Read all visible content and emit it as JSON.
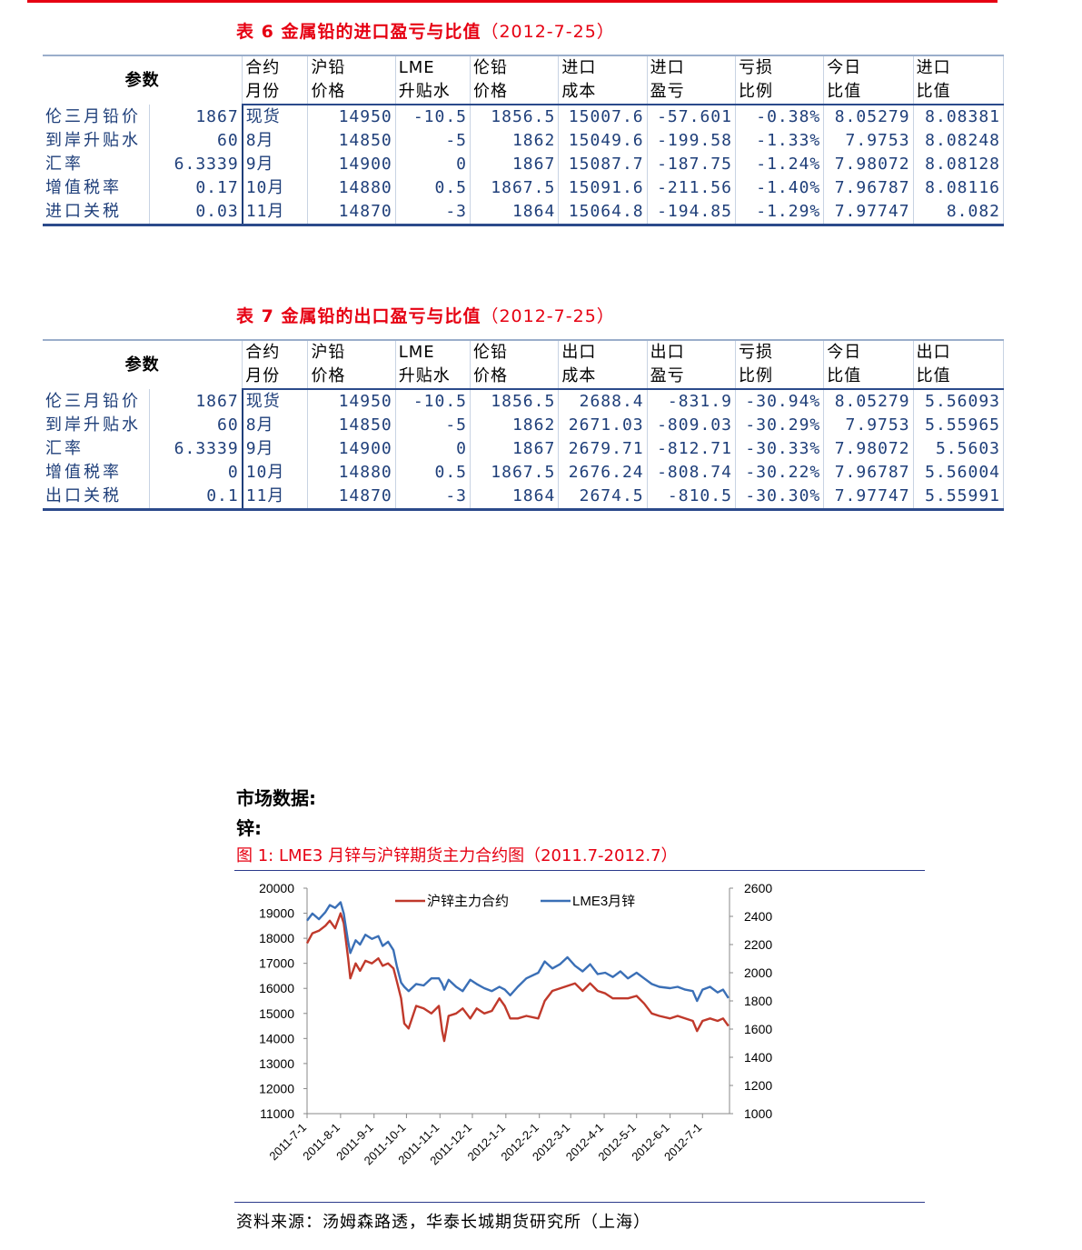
{
  "table6": {
    "title": "表 6 金属铅的进口盈亏与比值",
    "date": "（2012-7-25）",
    "param_header": "参数",
    "headers_top": [
      "合约",
      "沪铅",
      "LME",
      "伦铅",
      "进口",
      "进口",
      "亏损",
      "今日",
      "进口"
    ],
    "headers_bottom": [
      "月份",
      "价格",
      "升贴水",
      "价格",
      "成本",
      "盈亏",
      "比例",
      "比值",
      "比值"
    ],
    "rows": [
      {
        "label": "伦三月铅价",
        "value": "1867",
        "cells": [
          "现货",
          "14950",
          "-10.5",
          "1856.5",
          "15007.6",
          "-57.601",
          "-0.38%",
          "8.05279",
          "8.08381"
        ]
      },
      {
        "label": "到岸升贴水",
        "value": "60",
        "cells": [
          "8月",
          "14850",
          "-5",
          "1862",
          "15049.6",
          "-199.58",
          "-1.33%",
          "7.9753",
          "8.08248"
        ]
      },
      {
        "label": "汇率",
        "value": "6.3339",
        "cells": [
          "9月",
          "14900",
          "0",
          "1867",
          "15087.7",
          "-187.75",
          "-1.24%",
          "7.98072",
          "8.08128"
        ]
      },
      {
        "label": "增值税率",
        "value": "0.17",
        "cells": [
          "10月",
          "14880",
          "0.5",
          "1867.5",
          "15091.6",
          "-211.56",
          "-1.40%",
          "7.96787",
          "8.08116"
        ]
      },
      {
        "label": "进口关税",
        "value": "0.03",
        "cells": [
          "11月",
          "14870",
          "-3",
          "1864",
          "15064.8",
          "-194.85",
          "-1.29%",
          "7.97747",
          "8.082"
        ]
      }
    ]
  },
  "table7": {
    "title": "表 7 金属铅的出口盈亏与比值",
    "date": "（2012-7-25）",
    "param_header": "参数",
    "headers_top": [
      "合约",
      "沪铅",
      "LME",
      "伦铅",
      "出口",
      "出口",
      "亏损",
      "今日",
      "出口"
    ],
    "headers_bottom": [
      "月份",
      "价格",
      "升贴水",
      "价格",
      "成本",
      "盈亏",
      "比例",
      "比值",
      "比值"
    ],
    "rows": [
      {
        "label": "伦三月铅价",
        "value": "1867",
        "cells": [
          "现货",
          "14950",
          "-10.5",
          "1856.5",
          "2688.4",
          "-831.9",
          "-30.94%",
          "8.05279",
          "5.56093"
        ]
      },
      {
        "label": "到岸升贴水",
        "value": "60",
        "cells": [
          "8月",
          "14850",
          "-5",
          "1862",
          "2671.03",
          "-809.03",
          "-30.29%",
          "7.9753",
          "5.55965"
        ]
      },
      {
        "label": "汇率",
        "value": "6.3339",
        "cells": [
          "9月",
          "14900",
          "0",
          "1867",
          "2679.71",
          "-812.71",
          "-30.33%",
          "7.98072",
          "5.5603"
        ]
      },
      {
        "label": "增值税率",
        "value": "0",
        "cells": [
          "10月",
          "14880",
          "0.5",
          "1867.5",
          "2676.24",
          "-808.74",
          "-30.22%",
          "7.96787",
          "5.56004"
        ]
      },
      {
        "label": "出口关税",
        "value": "0.1",
        "cells": [
          "11月",
          "14870",
          "-3",
          "1864",
          "2674.5",
          "-810.5",
          "-30.30%",
          "7.97747",
          "5.55991"
        ]
      }
    ]
  },
  "section": {
    "heading": "市场数据:",
    "subheading": "锌:"
  },
  "figure": {
    "title": "图 1:  LME3 月锌与沪锌期货主力合约图（2011.7-2012.7）",
    "source": "资料来源：汤姆森路透，华泰长城期货研究所（上海）"
  },
  "chart_data": {
    "type": "line",
    "title": "",
    "xlabel": "",
    "ylabel": "",
    "x_ticks": [
      "2011-7-1",
      "2011-8-1",
      "2011-9-1",
      "2011-10-1",
      "2011-11-1",
      "2011-12-1",
      "2012-1-1",
      "2012-2-1",
      "2012-3-1",
      "2012-4-1",
      "2012-5-1",
      "2012-6-1",
      "2012-7-1"
    ],
    "y_left": {
      "min": 11000,
      "max": 20000,
      "ticks": [
        11000,
        12000,
        13000,
        14000,
        15000,
        16000,
        17000,
        18000,
        19000,
        20000
      ]
    },
    "y_right": {
      "min": 1000,
      "max": 2600,
      "ticks": [
        1000,
        1200,
        1400,
        1600,
        1800,
        2000,
        2200,
        2400,
        2600
      ]
    },
    "legend": "top-center",
    "grid": false,
    "series": [
      {
        "name": "沪锌主力合约",
        "axis": "left",
        "color": "#c0392b",
        "points": [
          [
            "2011-7-1",
            17800
          ],
          [
            "2011-7-6",
            18200
          ],
          [
            "2011-7-12",
            18300
          ],
          [
            "2011-7-18",
            18500
          ],
          [
            "2011-7-22",
            18700
          ],
          [
            "2011-7-27",
            18400
          ],
          [
            "2011-8-1",
            19000
          ],
          [
            "2011-8-4",
            18600
          ],
          [
            "2011-8-8",
            17200
          ],
          [
            "2011-8-10",
            16400
          ],
          [
            "2011-8-15",
            17000
          ],
          [
            "2011-8-19",
            16700
          ],
          [
            "2011-8-24",
            17100
          ],
          [
            "2011-8-30",
            17000
          ],
          [
            "2011-9-5",
            17200
          ],
          [
            "2011-9-9",
            16900
          ],
          [
            "2011-9-14",
            17000
          ],
          [
            "2011-9-19",
            16800
          ],
          [
            "2011-9-22",
            16300
          ],
          [
            "2011-9-26",
            15600
          ],
          [
            "2011-9-29",
            14600
          ],
          [
            "2011-10-3",
            14400
          ],
          [
            "2011-10-10",
            15300
          ],
          [
            "2011-10-17",
            15200
          ],
          [
            "2011-10-24",
            15000
          ],
          [
            "2011-10-31",
            15300
          ],
          [
            "2011-11-3",
            14300
          ],
          [
            "2011-11-5",
            13900
          ],
          [
            "2011-11-9",
            14900
          ],
          [
            "2011-11-16",
            15000
          ],
          [
            "2011-11-22",
            15200
          ],
          [
            "2011-11-29",
            14800
          ],
          [
            "2011-12-5",
            15200
          ],
          [
            "2011-12-12",
            15000
          ],
          [
            "2011-12-19",
            15100
          ],
          [
            "2011-12-26",
            15600
          ],
          [
            "2011-12-31",
            15300
          ],
          [
            "2012-1-5",
            14800
          ],
          [
            "2012-1-12",
            14800
          ],
          [
            "2012-1-20",
            14900
          ],
          [
            "2012-1-31",
            14800
          ],
          [
            "2012-2-6",
            15500
          ],
          [
            "2012-2-13",
            15900
          ],
          [
            "2012-2-20",
            16000
          ],
          [
            "2012-2-27",
            16100
          ],
          [
            "2012-3-5",
            16200
          ],
          [
            "2012-3-12",
            15900
          ],
          [
            "2012-3-19",
            16200
          ],
          [
            "2012-3-26",
            15900
          ],
          [
            "2012-4-2",
            15800
          ],
          [
            "2012-4-9",
            15600
          ],
          [
            "2012-4-16",
            15600
          ],
          [
            "2012-4-23",
            15600
          ],
          [
            "2012-5-1",
            15700
          ],
          [
            "2012-5-8",
            15400
          ],
          [
            "2012-5-15",
            15000
          ],
          [
            "2012-5-22",
            14900
          ],
          [
            "2012-6-1",
            14800
          ],
          [
            "2012-6-8",
            14900
          ],
          [
            "2012-6-15",
            14800
          ],
          [
            "2012-6-22",
            14700
          ],
          [
            "2012-6-26",
            14300
          ],
          [
            "2012-7-1",
            14700
          ],
          [
            "2012-7-8",
            14800
          ],
          [
            "2012-7-15",
            14700
          ],
          [
            "2012-7-20",
            14800
          ],
          [
            "2012-7-25",
            14500
          ]
        ]
      },
      {
        "name": "LME3月锌",
        "axis": "right",
        "color": "#3a6fb6",
        "points": [
          [
            "2011-7-1",
            2370
          ],
          [
            "2011-7-6",
            2420
          ],
          [
            "2011-7-12",
            2380
          ],
          [
            "2011-7-18",
            2430
          ],
          [
            "2011-7-22",
            2480
          ],
          [
            "2011-7-27",
            2460
          ],
          [
            "2011-8-1",
            2500
          ],
          [
            "2011-8-4",
            2420
          ],
          [
            "2011-8-8",
            2220
          ],
          [
            "2011-8-10",
            2140
          ],
          [
            "2011-8-15",
            2230
          ],
          [
            "2011-8-19",
            2200
          ],
          [
            "2011-8-24",
            2270
          ],
          [
            "2011-8-30",
            2240
          ],
          [
            "2011-9-5",
            2260
          ],
          [
            "2011-9-9",
            2190
          ],
          [
            "2011-9-14",
            2220
          ],
          [
            "2011-9-19",
            2160
          ],
          [
            "2011-9-22",
            2050
          ],
          [
            "2011-9-26",
            1930
          ],
          [
            "2011-9-29",
            1900
          ],
          [
            "2011-10-3",
            1870
          ],
          [
            "2011-10-10",
            1920
          ],
          [
            "2011-10-17",
            1910
          ],
          [
            "2011-10-24",
            1960
          ],
          [
            "2011-10-31",
            1960
          ],
          [
            "2011-11-3",
            1920
          ],
          [
            "2011-11-5",
            1880
          ],
          [
            "2011-11-9",
            1950
          ],
          [
            "2011-11-16",
            1900
          ],
          [
            "2011-11-22",
            1870
          ],
          [
            "2011-11-29",
            1950
          ],
          [
            "2011-12-5",
            1920
          ],
          [
            "2011-12-12",
            1890
          ],
          [
            "2011-12-19",
            1870
          ],
          [
            "2011-12-26",
            1900
          ],
          [
            "2011-12-31",
            1880
          ],
          [
            "2012-1-5",
            1840
          ],
          [
            "2012-1-12",
            1900
          ],
          [
            "2012-1-20",
            1960
          ],
          [
            "2012-1-31",
            2000
          ],
          [
            "2012-2-6",
            2080
          ],
          [
            "2012-2-13",
            2030
          ],
          [
            "2012-2-20",
            2060
          ],
          [
            "2012-2-27",
            2110
          ],
          [
            "2012-3-5",
            2050
          ],
          [
            "2012-3-12",
            2010
          ],
          [
            "2012-3-19",
            2060
          ],
          [
            "2012-3-26",
            1990
          ],
          [
            "2012-4-2",
            2000
          ],
          [
            "2012-4-9",
            1970
          ],
          [
            "2012-4-16",
            2010
          ],
          [
            "2012-4-23",
            1960
          ],
          [
            "2012-5-1",
            2000
          ],
          [
            "2012-5-8",
            1960
          ],
          [
            "2012-5-15",
            1920
          ],
          [
            "2012-5-22",
            1900
          ],
          [
            "2012-6-1",
            1890
          ],
          [
            "2012-6-8",
            1900
          ],
          [
            "2012-6-15",
            1880
          ],
          [
            "2012-6-22",
            1870
          ],
          [
            "2012-6-26",
            1800
          ],
          [
            "2012-7-1",
            1880
          ],
          [
            "2012-7-8",
            1900
          ],
          [
            "2012-7-15",
            1860
          ],
          [
            "2012-7-20",
            1880
          ],
          [
            "2012-7-25",
            1820
          ]
        ]
      }
    ]
  }
}
